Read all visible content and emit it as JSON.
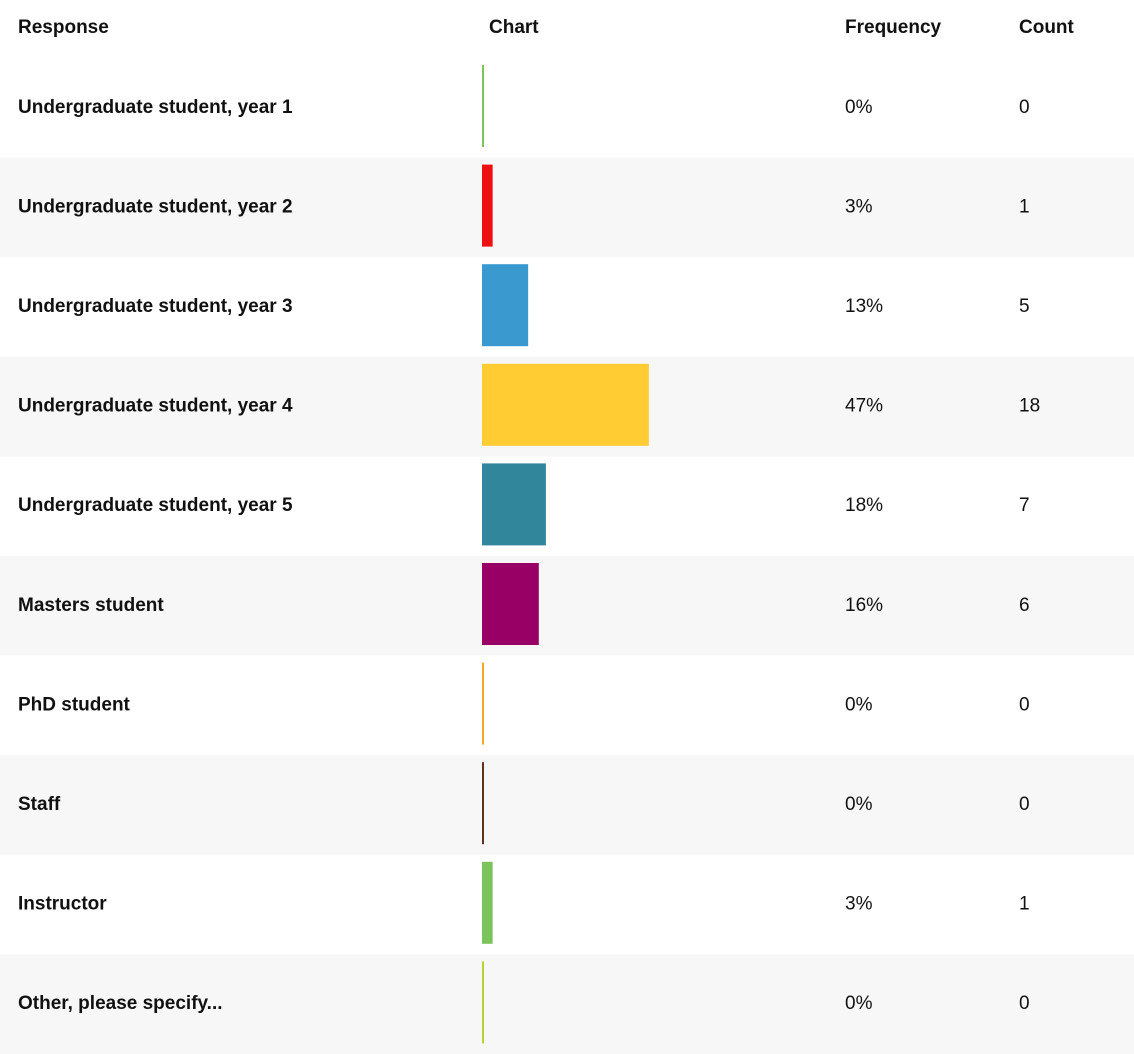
{
  "chart_data": {
    "type": "bar",
    "columns": [
      "Response",
      "Chart",
      "Frequency",
      "Count"
    ],
    "categories": [
      "Undergraduate student, year 1",
      "Undergraduate student, year 2",
      "Undergraduate student, year 3",
      "Undergraduate student, year 4",
      "Undergraduate student, year 5",
      "Masters student",
      "PhD student",
      "Staff",
      "Instructor",
      "Other, please specify..."
    ],
    "values": [
      0,
      3,
      13,
      47,
      18,
      16,
      0,
      0,
      3,
      0
    ],
    "value_labels": [
      "0%",
      "3%",
      "13%",
      "47%",
      "18%",
      "16%",
      "0%",
      "0%",
      "3%",
      "0%"
    ],
    "counts": [
      0,
      1,
      5,
      18,
      7,
      6,
      0,
      0,
      1,
      0
    ],
    "colors": [
      "#7dc35b",
      "#ee1111",
      "#3a9ad0",
      "#ffcc33",
      "#32869c",
      "#990066",
      "#f5a623",
      "#5c3317",
      "#7dc35b",
      "#b5d334"
    ],
    "xlim": [
      0,
      100
    ]
  }
}
